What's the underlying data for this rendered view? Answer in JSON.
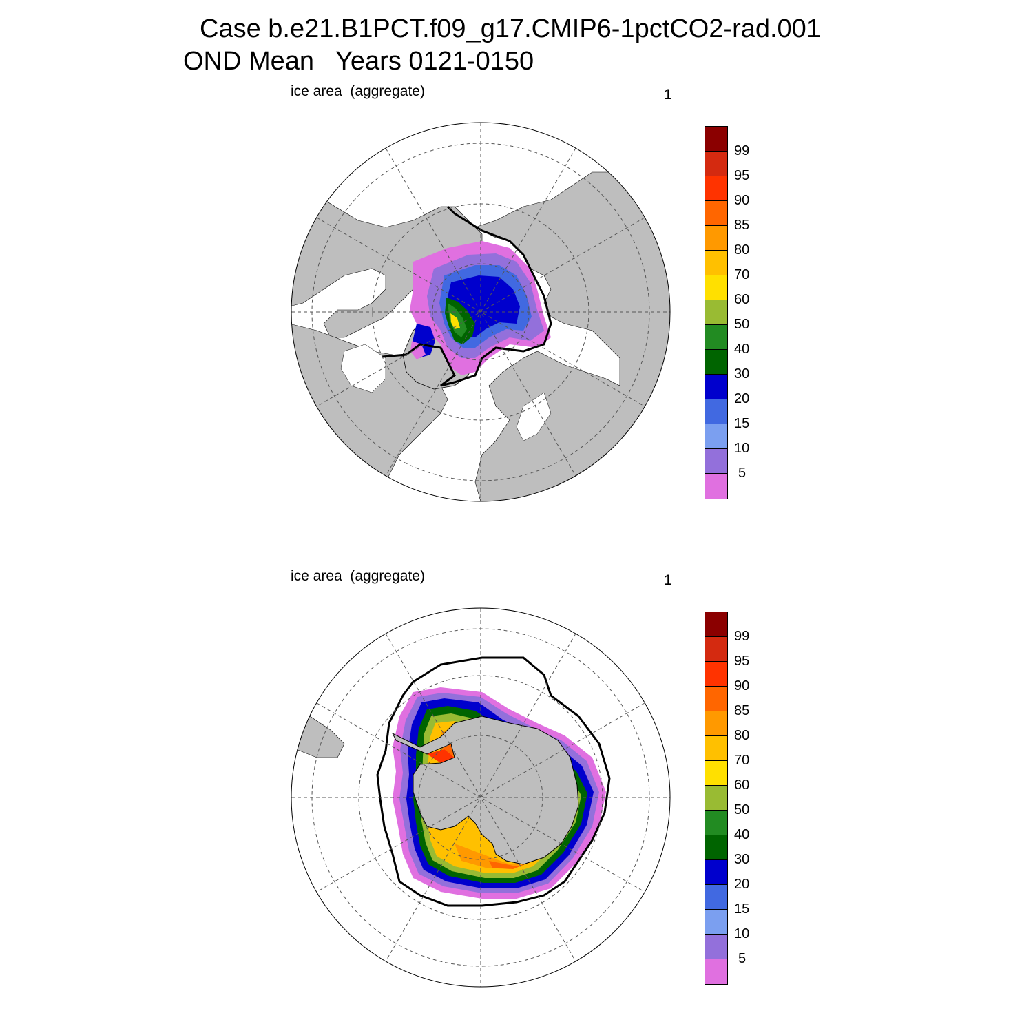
{
  "title": {
    "line1": "Case b.e21.B1PCT.f09_g17.CMIP6-1pctCO2-rad.001",
    "line2": "OND Mean   Years 0121-0150"
  },
  "panels": [
    {
      "label": "ice area  (aggregate)",
      "number": "1",
      "hemisphere": "north"
    },
    {
      "label": "ice area  (aggregate)",
      "number": "1",
      "hemisphere": "south"
    }
  ],
  "colorbar": {
    "labels": [
      "99",
      "95",
      "90",
      "85",
      "80",
      "70",
      "60",
      "50",
      "40",
      "30",
      "20",
      "15",
      "10",
      "5"
    ],
    "colors": [
      "#8b0000",
      "#d42a10",
      "#ff3300",
      "#ff6600",
      "#ff9900",
      "#ffc000",
      "#ffe000",
      "#99bb33",
      "#228b22",
      "#006400",
      "#0000cd",
      "#4169e1",
      "#7b9ff0",
      "#9370db",
      "#e070e0"
    ]
  },
  "map_colors": {
    "land": "#bebebe",
    "ocean": "#ffffff",
    "grid": "#555555"
  }
}
